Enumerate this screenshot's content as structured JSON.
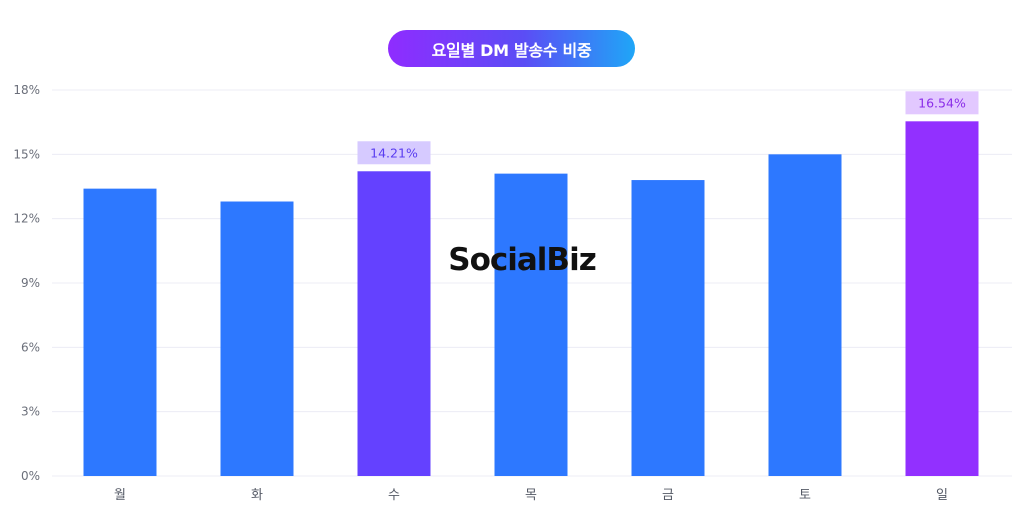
{
  "chart_data": {
    "type": "bar",
    "title": "요일별 DM 발송수 비중",
    "categories": [
      "월",
      "화",
      "수",
      "목",
      "금",
      "토",
      "일"
    ],
    "values": [
      13.4,
      12.8,
      14.21,
      14.1,
      13.8,
      15.0,
      16.54
    ],
    "value_unit": "%",
    "ylim": [
      0,
      18
    ],
    "yticks": [
      0,
      3,
      6,
      9,
      12,
      15,
      18
    ],
    "ytick_labels": [
      "0%",
      "3%",
      "6%",
      "9%",
      "12%",
      "15%",
      "18%"
    ],
    "grid": true,
    "highlighted": [
      {
        "index": 2,
        "label": "14.21%",
        "bar_color": "#6441ff",
        "label_bg": "#d6caff",
        "label_color": "#5a3df0"
      },
      {
        "index": 6,
        "label": "16.54%",
        "bar_color": "#9230ff",
        "label_bg": "#e2c8ff",
        "label_color": "#8a2de8"
      }
    ],
    "default_bar_color": "#2d78ff",
    "watermark": "SocialBiz"
  }
}
